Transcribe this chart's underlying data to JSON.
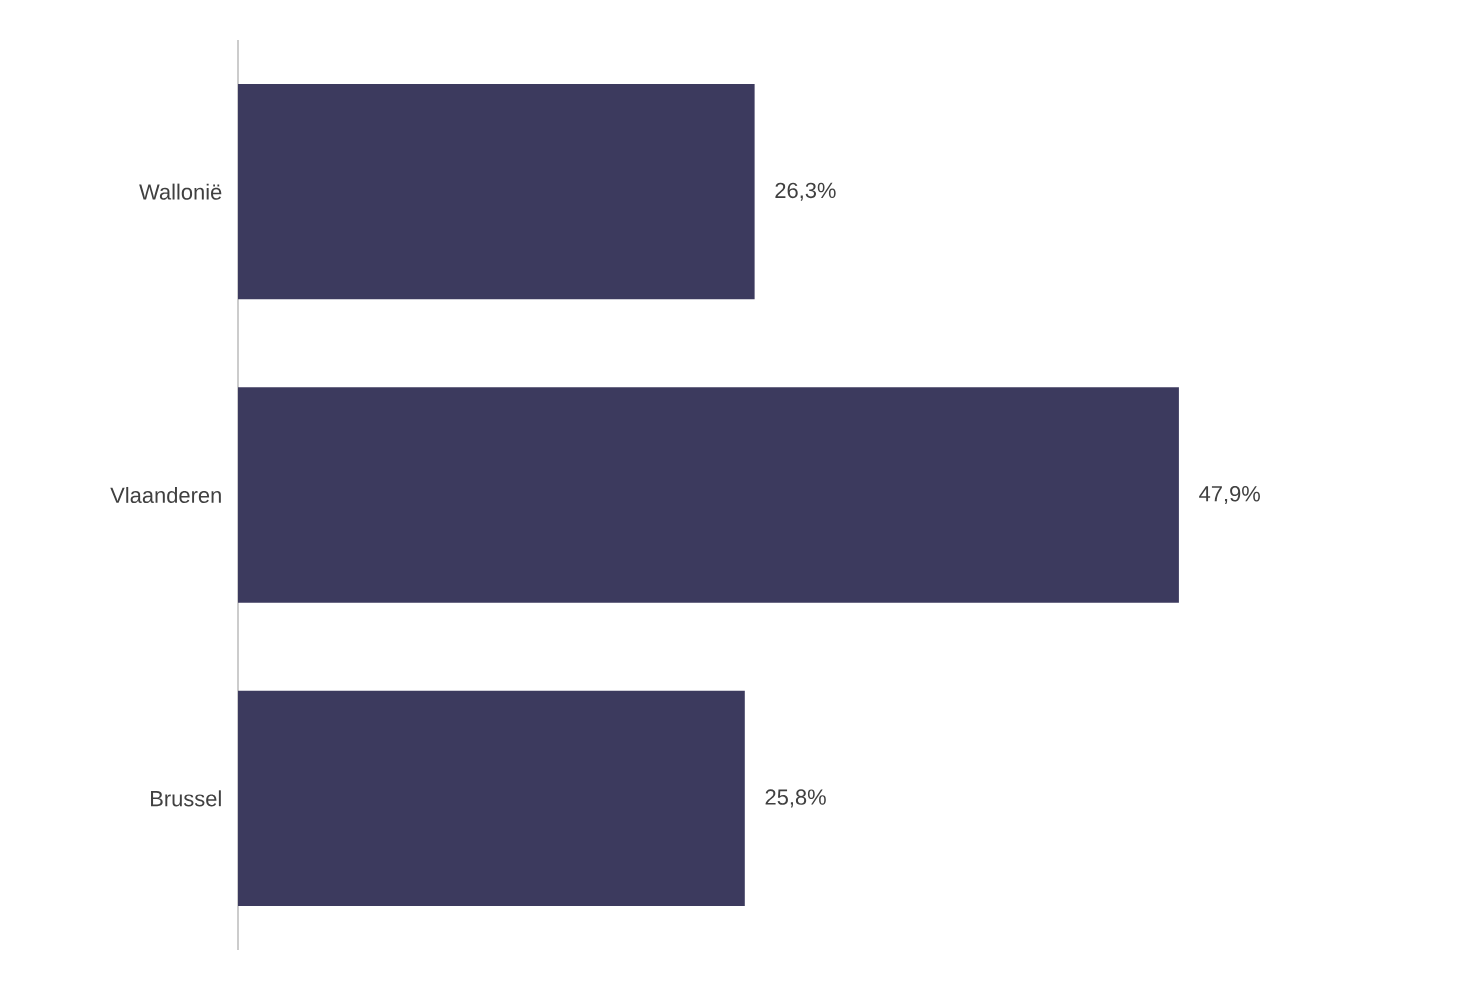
{
  "chart_data": {
    "type": "bar",
    "orientation": "horizontal",
    "categories": [
      "Wallonië",
      "Vlaanderen",
      "Brussel"
    ],
    "values": [
      26.3,
      47.9,
      25.8
    ],
    "value_labels": [
      "26,3%",
      "47,9%",
      "25,8%"
    ],
    "color": "#3c3a5e"
  }
}
